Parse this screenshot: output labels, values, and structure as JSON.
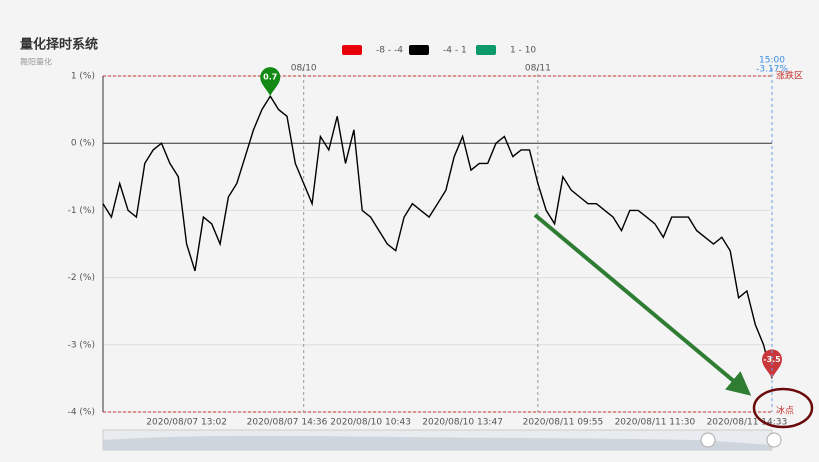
{
  "chart_data": {
    "type": "line",
    "title": "量化择时系统",
    "subtitle": "舞阳量化",
    "categories": [
      null,
      null,
      null,
      null,
      null,
      null,
      null,
      null,
      null,
      null,
      "2020/08/07 13:02",
      null,
      null,
      null,
      null,
      null,
      null,
      null,
      null,
      null,
      null,
      null,
      "2020/08/07 14:36",
      null,
      null,
      null,
      null,
      null,
      null,
      null,
      null,
      null,
      "2020/08/10 10:43",
      null,
      null,
      null,
      null,
      null,
      null,
      null,
      null,
      null,
      null,
      "2020/08/10 13:47",
      null,
      null,
      null,
      null,
      null,
      null,
      null,
      null,
      null,
      null,
      null,
      "2020/08/11 09:55",
      null,
      null,
      null,
      null,
      null,
      null,
      null,
      null,
      null,
      null,
      "2020/08/11 11:30",
      null,
      null,
      null,
      null,
      null,
      null,
      null,
      null,
      null,
      null,
      "2020/08/11 14:33",
      null,
      null,
      null
    ],
    "values": [
      -0.9,
      -1.1,
      -0.6,
      -1.0,
      -1.1,
      -0.3,
      -0.1,
      0.0,
      -0.3,
      -0.5,
      -1.5,
      -1.9,
      -1.1,
      -1.2,
      -1.5,
      -0.8,
      -0.6,
      -0.2,
      0.2,
      0.5,
      0.7,
      0.5,
      0.4,
      -0.3,
      -0.6,
      -0.9,
      0.1,
      -0.1,
      0.4,
      -0.3,
      0.2,
      -1.0,
      -1.1,
      -1.3,
      -1.5,
      -1.6,
      -1.1,
      -0.9,
      -1.0,
      -1.1,
      -0.9,
      -0.7,
      -0.2,
      0.1,
      -0.4,
      -0.3,
      -0.3,
      0.0,
      0.1,
      -0.2,
      -0.1,
      -0.1,
      -0.6,
      -1.0,
      -1.2,
      -0.5,
      -0.7,
      -0.8,
      -0.9,
      -0.9,
      -1.0,
      -1.1,
      -1.3,
      -1.0,
      -1.0,
      -1.1,
      -1.2,
      -1.4,
      -1.1,
      -1.1,
      -1.1,
      -1.3,
      -1.4,
      -1.5,
      -1.4,
      -1.6,
      -2.3,
      -2.2,
      -2.7,
      -3.0,
      -3.5
    ],
    "ylim": [
      -4,
      1
    ],
    "yticks": [
      {
        "value": -4,
        "label": "-4 (%)"
      },
      {
        "value": -3,
        "label": "-3 (%)"
      },
      {
        "value": -2,
        "label": "-2 (%)"
      },
      {
        "value": -1,
        "label": "-1 (%)"
      },
      {
        "value": 0,
        "label": "0 (%)"
      },
      {
        "value": 1,
        "label": "1 (%)"
      }
    ],
    "grid": true,
    "pieces": [
      {
        "min": -8,
        "max": -4,
        "label": "-8 - -4",
        "color": "#e8000b"
      },
      {
        "min": -4,
        "max": 1,
        "label": "-4 - 1",
        "color": "#000000"
      },
      {
        "min": 1,
        "max": 10,
        "label": "1 - 10",
        "color": "#0c9a6a"
      }
    ],
    "x_markers": [
      {
        "at": 24,
        "label": "08/10"
      },
      {
        "at": 52,
        "label": "08/11"
      }
    ],
    "mark_lines": [
      {
        "value": 1,
        "label": "涨跌区"
      },
      {
        "value": -4,
        "label": "冰点"
      }
    ],
    "mark_points": [
      {
        "at": 20,
        "value": 0.7,
        "color": "#138a13"
      },
      {
        "at": 80,
        "value": -3.5,
        "color": "#c9373a"
      }
    ],
    "cursor": {
      "time": "15:00",
      "value": -3.17,
      "label": "-3.17%"
    }
  }
}
